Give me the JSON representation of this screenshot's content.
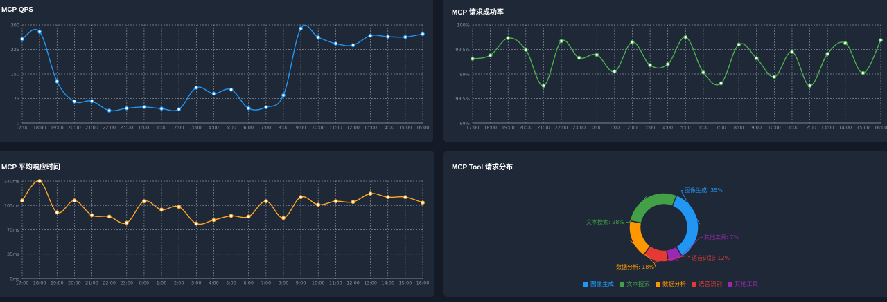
{
  "panels": {
    "qps": {
      "title": "MCP QPS"
    },
    "success": {
      "title": "MCP 请求成功率"
    },
    "latency": {
      "title": "MCP 平均响应时间"
    },
    "tools": {
      "title": "MCP Tool 请求分布"
    }
  },
  "hours": [
    "17:00",
    "18:00",
    "19:00",
    "20:00",
    "21:00",
    "22:00",
    "23:00",
    "0:00",
    "1:00",
    "2:00",
    "3:00",
    "4:00",
    "5:00",
    "6:00",
    "7:00",
    "8:00",
    "9:00",
    "10:00",
    "11:00",
    "12:00",
    "13:00",
    "14:00",
    "15:00",
    "16:00"
  ],
  "colors": {
    "qps": "#2196f3",
    "success": "#4caf50",
    "latency": "#ffa726",
    "bg": "#1f2837"
  },
  "chart_data": [
    {
      "id": "qps",
      "type": "line",
      "title": "MCP QPS",
      "x": [
        "17:00",
        "18:00",
        "19:00",
        "20:00",
        "21:00",
        "22:00",
        "23:00",
        "0:00",
        "1:00",
        "2:00",
        "3:00",
        "4:00",
        "5:00",
        "6:00",
        "7:00",
        "8:00",
        "9:00",
        "10:00",
        "11:00",
        "12:00",
        "13:00",
        "14:00",
        "15:00",
        "16:00"
      ],
      "series": [
        {
          "values": [
            257,
            279,
            127,
            66,
            67,
            38,
            45,
            49,
            44,
            42,
            108,
            90,
            102,
            45,
            48,
            85,
            289,
            262,
            243,
            238,
            267,
            264,
            263,
            272
          ]
        }
      ],
      "ylim": [
        0,
        300
      ],
      "yticks": [
        0,
        75,
        150,
        225,
        300
      ],
      "ytick_labels": [
        "0",
        "75",
        "150",
        "225",
        "300"
      ],
      "grid": true,
      "smooth": true
    },
    {
      "id": "success",
      "type": "line",
      "title": "MCP 请求成功率",
      "x": [
        "17:00",
        "18:00",
        "19:00",
        "20:00",
        "21:00",
        "22:00",
        "23:00",
        "0:00",
        "1:00",
        "2:00",
        "3:00",
        "4:00",
        "5:00",
        "6:00",
        "7:00",
        "8:00",
        "9:00",
        "10:00",
        "11:00",
        "12:00",
        "13:00",
        "14:00",
        "15:00",
        "16:00"
      ],
      "series": [
        {
          "values": [
            99.31,
            99.38,
            99.73,
            99.49,
            98.76,
            99.67,
            99.33,
            99.39,
            99.05,
            99.65,
            99.18,
            99.2,
            99.75,
            99.03,
            98.81,
            99.6,
            99.32,
            98.94,
            99.45,
            98.76,
            99.41,
            99.63,
            99.02,
            99.69
          ]
        }
      ],
      "ylim": [
        98,
        100
      ],
      "yticks": [
        98,
        98.5,
        99,
        99.5,
        100
      ],
      "ytick_labels": [
        "98%",
        "98.5%",
        "99%",
        "99.5%",
        "100%"
      ],
      "grid": true,
      "smooth": true
    },
    {
      "id": "latency",
      "type": "line",
      "title": "MCP 平均响应时间",
      "x": [
        "17:00",
        "18:00",
        "19:00",
        "20:00",
        "21:00",
        "22:00",
        "23:00",
        "0:00",
        "1:00",
        "2:00",
        "3:00",
        "4:00",
        "5:00",
        "6:00",
        "7:00",
        "8:00",
        "9:00",
        "10:00",
        "11:00",
        "12:00",
        "13:00",
        "14:00",
        "15:00",
        "16:00"
      ],
      "series": [
        {
          "values": [
            112,
            140,
            95,
            112,
            91,
            89,
            80,
            111,
            99,
            103,
            79,
            84,
            90,
            89,
            111,
            87,
            117,
            106,
            111,
            110,
            122,
            117,
            117,
            109
          ]
        }
      ],
      "ylim": [
        0,
        140
      ],
      "yticks": [
        0,
        35,
        70,
        105,
        140
      ],
      "ytick_labels": [
        "0ms",
        "35ms",
        "70ms",
        "105ms",
        "140ms"
      ],
      "grid": true,
      "smooth": true
    },
    {
      "id": "tools",
      "type": "pie",
      "title": "MCP Tool 请求分布",
      "donut": true,
      "legend_position": "bottom",
      "slices": [
        {
          "name": "图像生成",
          "value": 35,
          "label": "图像生成: 35%",
          "color": "#2196f3"
        },
        {
          "name": "其他工具",
          "value": 7,
          "label": "其他工具: 7%",
          "color": "#9c27b0"
        },
        {
          "name": "语音识别",
          "value": 12,
          "label": "语音识别: 12%",
          "color": "#e53935"
        },
        {
          "name": "数据分析",
          "value": 18,
          "label": "数据分析: 18%",
          "color": "#ff9800"
        },
        {
          "name": "文本搜索",
          "value": 28,
          "label": "文本搜索: 28%",
          "color": "#43a047"
        }
      ],
      "legend": [
        "图像生成",
        "文本搜索",
        "数据分析",
        "语音识别",
        "其他工具"
      ]
    }
  ]
}
